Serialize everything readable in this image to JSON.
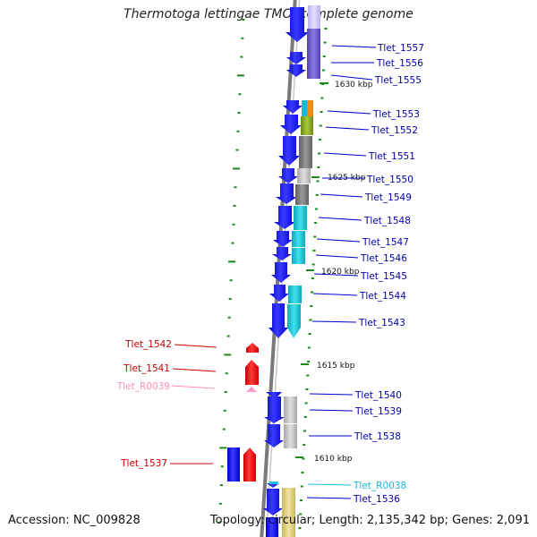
{
  "title": "Thermotoga lettingae TMO, complete genome",
  "footer": {
    "accession": "Accession: NC_009828",
    "summary": "Topology: circular; Length: 2,135,342 bp; Genes: 2,091"
  },
  "colors": {
    "forward": "#1010ee",
    "reverse": "#ee1010",
    "backbone": "#808080",
    "tick": "#1a8a1a",
    "rna_pink": "#ff8fbf",
    "rna_cyan": "#19c4e0",
    "right_label": "#0000aa",
    "left_label": "#cc0000"
  },
  "kbp_markers": [
    "1630 kbp",
    "1625 kbp",
    "1620 kbp",
    "1615 kbp",
    "1610 kbp"
  ],
  "right_labels": [
    "Tlet_1557",
    "Tlet_1556",
    "Tlet_1555",
    "Tlet_1553",
    "Tlet_1552",
    "Tlet_1551",
    "Tlet_1550",
    "Tlet_1549",
    "Tlet_1548",
    "Tlet_1547",
    "Tlet_1546",
    "Tlet_1545",
    "Tlet_1544",
    "Tlet_1543",
    "Tlet_1540",
    "Tlet_1539",
    "Tlet_1538",
    "Tlet_R0038",
    "Tlet_1536"
  ],
  "left_labels": [
    "Tlet_1542",
    "Tlet_1541",
    "Tlet_R0039",
    "Tlet_1537"
  ]
}
